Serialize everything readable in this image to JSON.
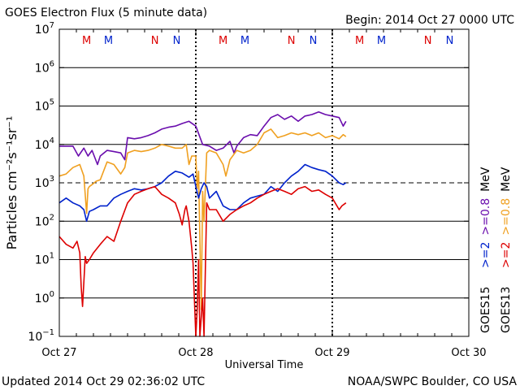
{
  "header": {
    "title": "GOES Electron Flux (5 minute data)",
    "begin": "Begin: 2014 Oct 27 0000 UTC"
  },
  "footer": {
    "updated": "Updated 2014 Oct 29 02:36:02 UTC",
    "credit": "NOAA/SWPC Boulder, CO USA"
  },
  "chart_data": {
    "type": "line",
    "title": "GOES Electron Flux (5 minute data)",
    "xlabel": "Universal Time",
    "ylabel": "Particles cm⁻²s⁻¹sr⁻¹",
    "yscale": "log",
    "ylim_exp": [
      -1,
      7
    ],
    "ytick_exponents": [
      -1,
      0,
      1,
      2,
      3,
      4,
      5,
      6,
      7
    ],
    "xlim_days": [
      0,
      3
    ],
    "xticks": [
      {
        "day": 0,
        "label": "Oct 27"
      },
      {
        "day": 1,
        "label": "Oct 28"
      },
      {
        "day": 2,
        "label": "Oct 29"
      },
      {
        "day": 3,
        "label": "Oct 30"
      }
    ],
    "threshold": {
      "value": 1000,
      "style": "dashed"
    },
    "markers": [
      {
        "day": 0.2,
        "text": "M",
        "color": "#dd0000"
      },
      {
        "day": 0.36,
        "text": "M",
        "color": "#0022cc"
      },
      {
        "day": 0.7,
        "text": "N",
        "color": "#dd0000"
      },
      {
        "day": 0.86,
        "text": "N",
        "color": "#0022cc"
      },
      {
        "day": 1.2,
        "text": "M",
        "color": "#dd0000"
      },
      {
        "day": 1.36,
        "text": "M",
        "color": "#0022cc"
      },
      {
        "day": 1.7,
        "text": "N",
        "color": "#dd0000"
      },
      {
        "day": 1.86,
        "text": "N",
        "color": "#0022cc"
      },
      {
        "day": 2.2,
        "text": "M",
        "color": "#dd0000"
      },
      {
        "day": 2.36,
        "text": "M",
        "color": "#0022cc"
      },
      {
        "day": 2.7,
        "text": "N",
        "color": "#dd0000"
      },
      {
        "day": 2.86,
        "text": "N",
        "color": "#0022cc"
      }
    ],
    "legend": {
      "goes15": "GOES15",
      "goes13": "GOES13",
      "items": [
        {
          "text": ">=2    >=0.8  MeV",
          "color": "#0022cc",
          "col": 0
        },
        {
          "text": ">=2    >=0.8  MeV",
          "color": "#dd0000",
          "col": 1
        }
      ]
    },
    "legend_parts": [
      {
        "col": 0,
        "text": ">=2",
        "color": "#0022cc"
      },
      {
        "col": 0,
        "text": ">=0.8",
        "color": "#6a0dad"
      },
      {
        "col": 0,
        "text": "MeV",
        "color": "#000000"
      },
      {
        "col": 1,
        "text": ">=2",
        "color": "#dd0000"
      },
      {
        "col": 1,
        "text": ">=0.8",
        "color": "#f0a020"
      },
      {
        "col": 1,
        "text": "MeV",
        "color": "#000000"
      }
    ],
    "series": [
      {
        "name": "GOES15 >=0.8 MeV",
        "color": "#6a0dad",
        "x": [
          0,
          0.05,
          0.1,
          0.14,
          0.18,
          0.21,
          0.24,
          0.28,
          0.3,
          0.35,
          0.4,
          0.45,
          0.48,
          0.5,
          0.55,
          0.6,
          0.65,
          0.7,
          0.75,
          0.8,
          0.85,
          0.9,
          0.95,
          1.0,
          1.05,
          1.1,
          1.15,
          1.2,
          1.25,
          1.28,
          1.3,
          1.35,
          1.4,
          1.45,
          1.5,
          1.55,
          1.6,
          1.65,
          1.7,
          1.75,
          1.8,
          1.85,
          1.9,
          1.95,
          2.0,
          2.05,
          2.08,
          2.1
        ],
        "y": [
          9000,
          9000,
          9000,
          5000,
          8000,
          5000,
          7000,
          3000,
          5000,
          7000,
          6500,
          6000,
          4000,
          15000,
          14000,
          15000,
          17000,
          20000,
          25000,
          28000,
          30000,
          35000,
          40000,
          30000,
          10000,
          9000,
          7000,
          8000,
          12000,
          6000,
          9000,
          15000,
          18000,
          17000,
          30000,
          50000,
          60000,
          45000,
          55000,
          40000,
          55000,
          60000,
          70000,
          60000,
          55000,
          50000,
          30000,
          40000
        ]
      },
      {
        "name": "GOES13 >=0.8 MeV",
        "color": "#f0a020",
        "x": [
          0,
          0.05,
          0.1,
          0.15,
          0.18,
          0.2,
          0.21,
          0.22,
          0.24,
          0.27,
          0.3,
          0.35,
          0.4,
          0.45,
          0.48,
          0.5,
          0.55,
          0.6,
          0.65,
          0.7,
          0.75,
          0.8,
          0.85,
          0.9,
          0.93,
          0.95,
          0.97,
          1.0,
          1.01,
          1.02,
          1.04,
          1.05,
          1.06,
          1.08,
          1.1,
          1.15,
          1.2,
          1.22,
          1.25,
          1.3,
          1.35,
          1.4,
          1.45,
          1.5,
          1.55,
          1.6,
          1.65,
          1.7,
          1.75,
          1.8,
          1.85,
          1.9,
          1.95,
          2.0,
          2.05,
          2.08,
          2.1
        ],
        "y": [
          1500,
          1700,
          2500,
          3000,
          1500,
          160,
          700,
          800,
          900,
          1100,
          1200,
          3500,
          3000,
          1700,
          2500,
          6000,
          7000,
          6500,
          7000,
          8000,
          10000,
          9000,
          8000,
          8000,
          10000,
          3000,
          5000,
          5000,
          700,
          2000,
          0.5,
          600,
          100,
          6000,
          7000,
          6000,
          3000,
          1500,
          4000,
          7000,
          6000,
          7000,
          10000,
          20000,
          25000,
          15000,
          17000,
          20000,
          18000,
          20000,
          17000,
          20000,
          15000,
          17000,
          14000,
          18000,
          16000
        ]
      },
      {
        "name": "GOES15 >=2 MeV",
        "color": "#0022cc",
        "x": [
          0,
          0.05,
          0.1,
          0.15,
          0.18,
          0.2,
          0.22,
          0.25,
          0.3,
          0.35,
          0.4,
          0.45,
          0.5,
          0.55,
          0.6,
          0.65,
          0.7,
          0.75,
          0.8,
          0.85,
          0.9,
          0.95,
          0.98,
          1.0,
          1.02,
          1.04,
          1.06,
          1.08,
          1.1,
          1.15,
          1.2,
          1.25,
          1.3,
          1.35,
          1.4,
          1.45,
          1.5,
          1.55,
          1.6,
          1.65,
          1.7,
          1.75,
          1.8,
          1.85,
          1.9,
          1.95,
          2.0,
          2.05,
          2.08,
          2.1
        ],
        "y": [
          300,
          400,
          300,
          250,
          200,
          100,
          180,
          200,
          250,
          250,
          400,
          500,
          600,
          700,
          650,
          700,
          800,
          1000,
          1500,
          2000,
          1800,
          1400,
          1700,
          800,
          400,
          700,
          1000,
          800,
          400,
          600,
          250,
          200,
          200,
          300,
          400,
          450,
          500,
          800,
          600,
          1000,
          1500,
          2000,
          3000,
          2500,
          2200,
          2000,
          1500,
          1000,
          900,
          1000
        ]
      },
      {
        "name": "GOES13 >=2 MeV",
        "color": "#dd0000",
        "x": [
          0,
          0.05,
          0.1,
          0.13,
          0.15,
          0.16,
          0.17,
          0.19,
          0.2,
          0.22,
          0.25,
          0.3,
          0.35,
          0.4,
          0.45,
          0.5,
          0.55,
          0.6,
          0.65,
          0.7,
          0.75,
          0.8,
          0.85,
          0.88,
          0.9,
          0.92,
          0.93,
          0.95,
          0.97,
          0.98,
          1.0,
          1.01,
          1.02,
          1.03,
          1.05,
          1.06,
          1.08,
          1.1,
          1.15,
          1.2,
          1.25,
          1.3,
          1.35,
          1.4,
          1.45,
          1.5,
          1.55,
          1.6,
          1.65,
          1.7,
          1.75,
          1.8,
          1.85,
          1.9,
          1.95,
          2.0,
          2.05,
          2.07,
          2.1
        ],
        "y": [
          40,
          25,
          20,
          30,
          15,
          2,
          0.6,
          12,
          8,
          10,
          15,
          25,
          40,
          30,
          100,
          300,
          500,
          600,
          700,
          800,
          500,
          400,
          300,
          150,
          80,
          200,
          250,
          100,
          20,
          8,
          0.1,
          0.5,
          10,
          0.1,
          1,
          0.1,
          300,
          200,
          200,
          100,
          150,
          200,
          250,
          300,
          400,
          500,
          600,
          700,
          600,
          500,
          700,
          800,
          600,
          650,
          500,
          400,
          200,
          250,
          300
        ]
      }
    ]
  }
}
